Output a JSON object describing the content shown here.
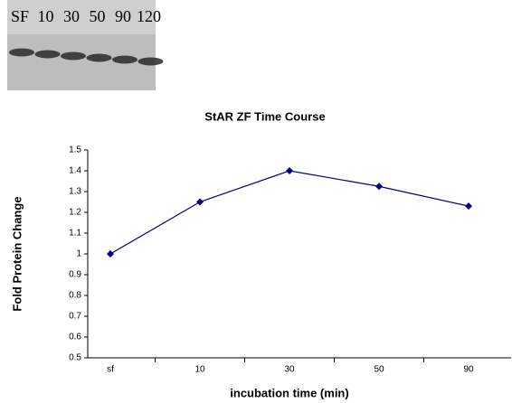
{
  "blot": {
    "lanes": [
      "SF",
      "10",
      "30",
      "50",
      "90",
      "120"
    ]
  },
  "chart_data": {
    "type": "line",
    "title": "StAR  ZF Time Course",
    "x_label": "incubation time (min)",
    "y_label": "Fold Protein Change",
    "categories": [
      "sf",
      "10",
      "30",
      "50",
      "90"
    ],
    "series": [
      {
        "name": "StAR ZF",
        "color": "#000080",
        "values": [
          1.0,
          1.25,
          1.4,
          1.325,
          1.23
        ]
      }
    ],
    "ylim": [
      0.5,
      1.5
    ],
    "yticks": [
      0.5,
      0.6,
      0.7,
      0.8,
      0.9,
      1,
      1.1,
      1.2,
      1.3,
      1.4,
      1.5
    ]
  }
}
